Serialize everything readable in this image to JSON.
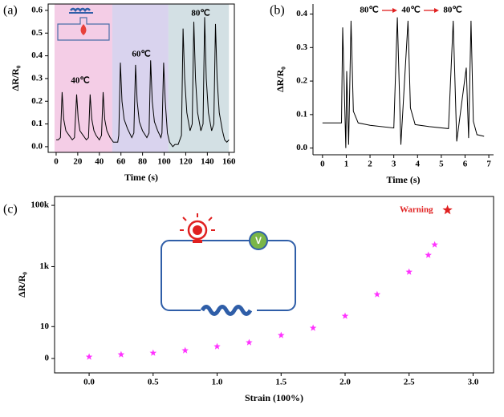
{
  "chart_data": [
    {
      "type": "line",
      "panel_label": "(a)",
      "xlabel": "Time (s)",
      "ylabel": "ΔR/R₀",
      "color": "#000000",
      "x": [
        0,
        2,
        4,
        5.5,
        7,
        9,
        12,
        15,
        17,
        19,
        20.5,
        22,
        25,
        28,
        30,
        31.5,
        33,
        35,
        37,
        40,
        42,
        43.5,
        45,
        47,
        50,
        53,
        55,
        57,
        58,
        59.5,
        61,
        63,
        66,
        70,
        72,
        73.5,
        75,
        77,
        80,
        84,
        86,
        87.5,
        89,
        91,
        94,
        97,
        98,
        99.5,
        101,
        103,
        105,
        108,
        110,
        113,
        116,
        117.5,
        119,
        121,
        124,
        126,
        127.5,
        129,
        131,
        134,
        136,
        137.5,
        139,
        141,
        144,
        146,
        147.5,
        149,
        151,
        154,
        156,
        158,
        160
      ],
      "values": [
        0.03,
        0.03,
        0.04,
        0.24,
        0.12,
        0.07,
        0.05,
        0.03,
        0.04,
        0.23,
        0.12,
        0.07,
        0.05,
        0.03,
        0.04,
        0.23,
        0.12,
        0.07,
        0.05,
        0.03,
        0.05,
        0.24,
        0.12,
        0.07,
        0.04,
        0.02,
        0.02,
        0.02,
        0.05,
        0.37,
        0.2,
        0.12,
        0.08,
        0.04,
        0.06,
        0.36,
        0.2,
        0.11,
        0.07,
        0.04,
        0.06,
        0.38,
        0.2,
        0.11,
        0.07,
        0.04,
        0.06,
        0.37,
        0.2,
        0.06,
        0.02,
        0.0,
        0.01,
        0.01,
        0.05,
        0.52,
        0.3,
        0.15,
        0.07,
        0.1,
        0.55,
        0.3,
        0.15,
        0.07,
        0.1,
        0.57,
        0.3,
        0.15,
        0.07,
        0.1,
        0.54,
        0.3,
        0.15,
        0.07,
        0.03,
        0.02,
        0.03
      ],
      "regions": [
        {
          "from": -1.5,
          "to": 52,
          "color": "#f4cde6"
        },
        {
          "from": 52,
          "to": 104,
          "color": "#d9d3ee"
        },
        {
          "from": 104,
          "to": 160,
          "color": "#d3e0e4"
        }
      ],
      "annotations": [
        "40℃",
        "60℃",
        "80℃"
      ],
      "xlim": [
        -7.4,
        165
      ],
      "ylim": [
        -0.025,
        0.628
      ],
      "xticks": [
        0,
        20,
        40,
        60,
        80,
        100,
        120,
        140,
        160
      ],
      "yticks": [
        {
          "value": 0,
          "label": "0.0"
        },
        0.1,
        0.2,
        0.3,
        0.4,
        0.5,
        0.6
      ]
    },
    {
      "type": "line",
      "panel_label": "(b)",
      "xlabel": "Time (s)",
      "ylabel": "ΔR/R₀",
      "color": "#000000",
      "x": [
        0,
        0.8,
        0.85,
        0.98,
        1.02,
        1.1,
        1.2,
        1.3,
        1.5,
        2.0,
        3.0,
        3.15,
        3.3,
        3.6,
        3.7,
        3.9,
        4.5,
        5.3,
        5.5,
        5.65,
        6.05,
        6.15,
        6.25,
        6.35,
        6.5,
        6.8
      ],
      "values": [
        0.075,
        0.075,
        0.36,
        0.0,
        0.23,
        0.01,
        0.38,
        0.11,
        0.075,
        0.068,
        0.06,
        0.39,
        0.01,
        0.38,
        0.12,
        0.07,
        0.064,
        0.058,
        0.38,
        0.02,
        0.24,
        0.03,
        0.38,
        0.08,
        0.04,
        0.035
      ],
      "annotations": [
        "80℃",
        "40℃",
        "80℃"
      ],
      "arrow_color": "#e02020",
      "xlim": [
        -0.4,
        7.2
      ],
      "ylim": [
        -0.02,
        0.43
      ],
      "xticks": [
        0,
        1,
        2,
        3,
        4,
        5,
        6,
        7
      ],
      "yticks": [
        {
          "value": 0,
          "label": "0.0"
        },
        0.1,
        0.2,
        0.3,
        0.4
      ]
    },
    {
      "type": "scatter",
      "panel_label": "(c)",
      "xlabel": "Strain (100%)",
      "ylabel": "ΔR/R₀",
      "color": "#ff33ff",
      "yscale": "symlog",
      "x": [
        0,
        0.25,
        0.5,
        0.75,
        1.0,
        1.25,
        1.5,
        1.75,
        2.0,
        2.25,
        2.5,
        2.65,
        2.7
      ],
      "values": [
        0.13,
        0.35,
        0.52,
        0.83,
        1.47,
        2.34,
        4.74,
        8.9,
        23.4,
        123,
        671,
        2380,
        5200
      ],
      "warning": {
        "label": "Warning",
        "x": 2.8,
        "value": 70000,
        "color": "#e02020"
      },
      "inset_text": "V",
      "xlim": [
        -0.27,
        3.16
      ],
      "ylim": [
        -1.95,
        195000
      ],
      "xticks": [
        {
          "value": 0,
          "label": "0.0"
        },
        0.5,
        {
          "value": 1,
          "label": "1.0"
        },
        1.5,
        {
          "value": 2,
          "label": "2.0"
        },
        2.5,
        {
          "value": 3,
          "label": "3.0"
        }
      ],
      "yticks": [
        0,
        10,
        {
          "value": 1000,
          "label": "1k"
        },
        {
          "value": 100000,
          "label": "100k"
        }
      ]
    }
  ]
}
